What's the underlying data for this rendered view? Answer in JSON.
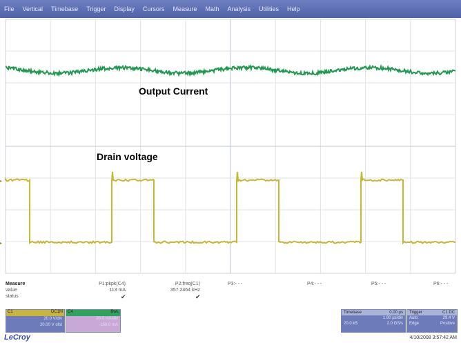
{
  "menu": [
    "File",
    "Vertical",
    "Timebase",
    "Trigger",
    "Display",
    "Cursors",
    "Measure",
    "Math",
    "Analysis",
    "Utilities",
    "Help"
  ],
  "annotations": {
    "output_current": "Output Current",
    "drain_voltage": "Drain voltage"
  },
  "measure": {
    "title": "Measure",
    "row_labels": [
      "value",
      "status"
    ],
    "params": [
      {
        "name": "P1:pkpk(C4)",
        "value": "113 mA",
        "status": "✔"
      },
      {
        "name": "P2:freq(C1)",
        "value": "357.2464 kHz",
        "status": "✔"
      },
      {
        "name": "P3:- - -",
        "value": "",
        "status": ""
      },
      {
        "name": "P4:- - -",
        "value": "",
        "status": ""
      },
      {
        "name": "P5:- - -",
        "value": "",
        "status": ""
      },
      {
        "name": "P6:- - -",
        "value": "",
        "status": ""
      }
    ]
  },
  "channels": [
    {
      "name": "C1",
      "tag": "DC1M",
      "line1": "20.0 V/div",
      "line2": "20.00 V ofst",
      "color": "#c9b43a"
    },
    {
      "name": "C4",
      "tag": "BwL",
      "line1": "20.0 mA/div",
      "line2": "-150.0 mA",
      "color": "#2ea45a"
    }
  ],
  "timebase": {
    "title": "Timebase",
    "value": "0.00 µs",
    "line1": "1.00 µs/div",
    "line2": "2.0 GS/s",
    "extra": "20.0 kS"
  },
  "trigger": {
    "title": "Trigger",
    "tag": "C1 DC",
    "mode": "Auto",
    "level": "29.4 V",
    "type": "Edge",
    "slope": "Positive"
  },
  "footer": {
    "logo": "LeCroy",
    "datetime": "4/10/2008 3:57:42 AM"
  },
  "colors": {
    "current_trace": "#1f9a4f",
    "voltage_trace": "#c8b733",
    "menubar": "#5a6bb1"
  }
}
